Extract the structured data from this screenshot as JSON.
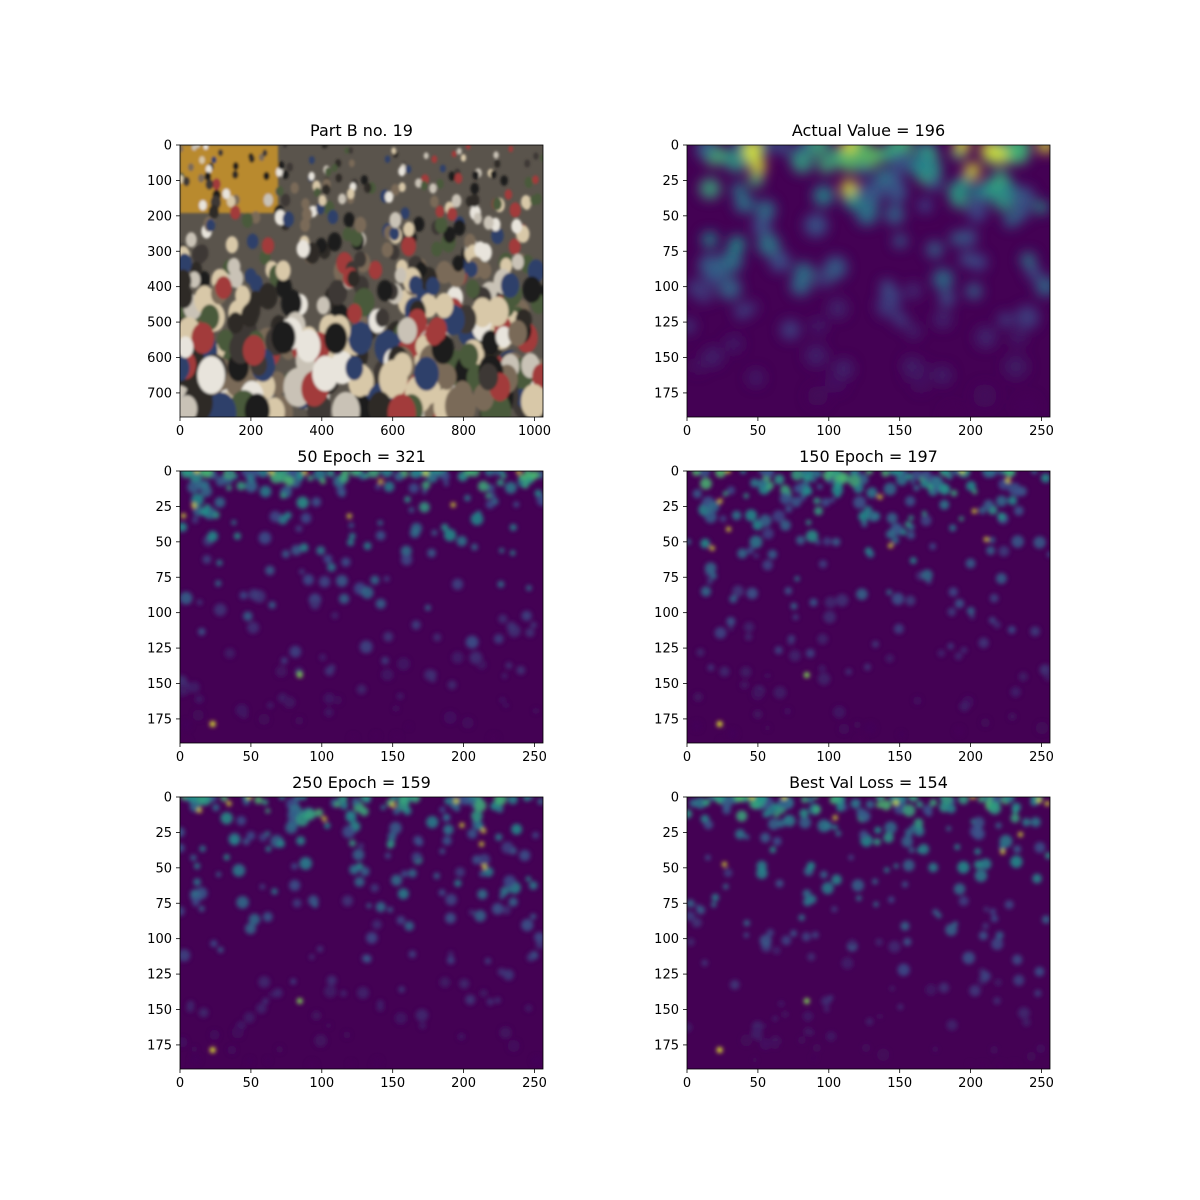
{
  "chart_data": [
    {
      "type": "heatmap",
      "title": "Part B no. 19",
      "content": "photo",
      "xticks": [
        0,
        200,
        400,
        600,
        800,
        1000
      ],
      "yticks": [
        0,
        100,
        200,
        300,
        400,
        500,
        600,
        700
      ],
      "xlim": [
        0,
        1024
      ],
      "ylim": [
        768,
        0
      ]
    },
    {
      "type": "heatmap",
      "title": "Actual Value = 196",
      "content": "ground-truth-density",
      "colormap": "viridis",
      "xticks": [
        0,
        50,
        100,
        150,
        200,
        250
      ],
      "yticks": [
        0,
        25,
        50,
        75,
        100,
        125,
        150,
        175
      ],
      "xlim": [
        0,
        256
      ],
      "ylim": [
        192,
        0
      ]
    },
    {
      "type": "heatmap",
      "title": "50 Epoch = 321",
      "content": "predicted-density",
      "colormap": "viridis",
      "xticks": [
        0,
        50,
        100,
        150,
        200,
        250
      ],
      "yticks": [
        0,
        25,
        50,
        75,
        100,
        125,
        150,
        175
      ],
      "xlim": [
        0,
        256
      ],
      "ylim": [
        192,
        0
      ]
    },
    {
      "type": "heatmap",
      "title": "150 Epoch = 197",
      "content": "predicted-density",
      "colormap": "viridis",
      "xticks": [
        0,
        50,
        100,
        150,
        200,
        250
      ],
      "yticks": [
        0,
        25,
        50,
        75,
        100,
        125,
        150,
        175
      ],
      "xlim": [
        0,
        256
      ],
      "ylim": [
        192,
        0
      ]
    },
    {
      "type": "heatmap",
      "title": "250 Epoch = 159",
      "content": "predicted-density",
      "colormap": "viridis",
      "xticks": [
        0,
        50,
        100,
        150,
        200,
        250
      ],
      "yticks": [
        0,
        25,
        50,
        75,
        100,
        125,
        150,
        175
      ],
      "xlim": [
        0,
        256
      ],
      "ylim": [
        192,
        0
      ]
    },
    {
      "type": "heatmap",
      "title": "Best Val Loss = 154",
      "content": "predicted-density",
      "colormap": "viridis",
      "xticks": [
        0,
        50,
        100,
        150,
        200,
        250
      ],
      "yticks": [
        0,
        25,
        50,
        75,
        100,
        125,
        150,
        175
      ],
      "xlim": [
        0,
        256
      ],
      "ylim": [
        192,
        0
      ]
    }
  ],
  "colors": {
    "viridis_background": "#440154",
    "viridis_mid": "#21918c",
    "viridis_high": "#fde725",
    "photo_dark": "#2a2520",
    "photo_light": "#e8e4dc"
  }
}
